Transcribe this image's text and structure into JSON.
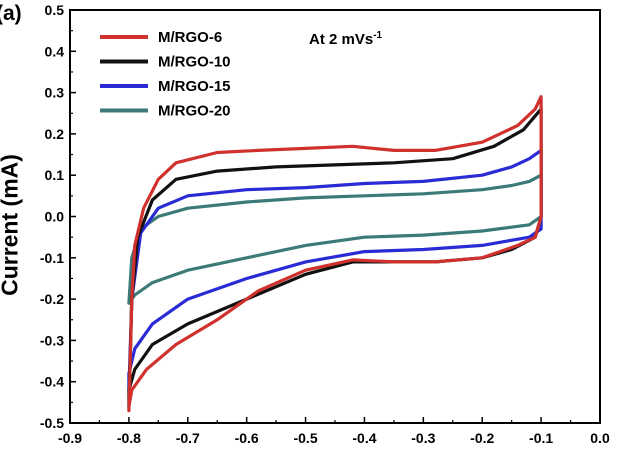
{
  "panel_label": "(a)",
  "chart_data": {
    "type": "line",
    "ylabel": "Current (mA)",
    "xlabel": "",
    "xlim": [
      -0.9,
      0.0
    ],
    "ylim": [
      -0.5,
      0.5
    ],
    "xticks": [
      "-0.9",
      "-0.8",
      "-0.7",
      "-0.6",
      "-0.5",
      "-0.4",
      "-0.3",
      "-0.2",
      "-0.1",
      "0.0"
    ],
    "yticks": [
      "0.5",
      "0.4",
      "0.3",
      "0.2",
      "0.1",
      "0.0",
      "-0.1",
      "-0.2",
      "-0.3",
      "-0.4",
      "-0.5"
    ],
    "annotation": {
      "text": "At 2 mVs",
      "superscript": "-1"
    },
    "legend_position": "top-left",
    "series": [
      {
        "name": "M/RGO-6",
        "color": "#d0312d",
        "x": [
          -0.8,
          -0.795,
          -0.79,
          -0.775,
          -0.75,
          -0.72,
          -0.65,
          -0.58,
          -0.5,
          -0.42,
          -0.35,
          -0.28,
          -0.2,
          -0.14,
          -0.11,
          -0.1,
          -0.1,
          -0.1,
          -0.11,
          -0.14,
          -0.2,
          -0.28,
          -0.35,
          -0.42,
          -0.5,
          -0.58,
          -0.65,
          -0.72,
          -0.77,
          -0.795,
          -0.8,
          -0.8
        ],
        "y": [
          -0.47,
          -0.2,
          -0.07,
          0.02,
          0.09,
          0.13,
          0.155,
          0.16,
          0.165,
          0.17,
          0.16,
          0.16,
          0.18,
          0.22,
          0.26,
          0.29,
          0.1,
          0.0,
          -0.05,
          -0.07,
          -0.1,
          -0.11,
          -0.11,
          -0.105,
          -0.13,
          -0.18,
          -0.25,
          -0.31,
          -0.37,
          -0.42,
          -0.46,
          -0.47
        ]
      },
      {
        "name": "M/RGO-10",
        "color": "#111111",
        "x": [
          -0.8,
          -0.795,
          -0.785,
          -0.76,
          -0.72,
          -0.65,
          -0.55,
          -0.45,
          -0.35,
          -0.25,
          -0.18,
          -0.13,
          -0.1,
          -0.1,
          -0.1,
          -0.11,
          -0.15,
          -0.2,
          -0.28,
          -0.35,
          -0.42,
          -0.5,
          -0.6,
          -0.7,
          -0.76,
          -0.79,
          -0.8,
          -0.8
        ],
        "y": [
          -0.46,
          -0.2,
          -0.05,
          0.04,
          0.09,
          0.11,
          0.12,
          0.125,
          0.13,
          0.14,
          0.17,
          0.21,
          0.26,
          0.1,
          0.0,
          -0.05,
          -0.08,
          -0.1,
          -0.11,
          -0.11,
          -0.11,
          -0.14,
          -0.2,
          -0.26,
          -0.31,
          -0.37,
          -0.42,
          -0.46
        ]
      },
      {
        "name": "M/RGO-15",
        "color": "#2b2bd6",
        "x": [
          -0.8,
          -0.795,
          -0.78,
          -0.75,
          -0.7,
          -0.6,
          -0.5,
          -0.4,
          -0.3,
          -0.2,
          -0.15,
          -0.12,
          -0.1,
          -0.1,
          -0.1,
          -0.12,
          -0.2,
          -0.3,
          -0.4,
          -0.5,
          -0.6,
          -0.7,
          -0.76,
          -0.79,
          -0.8,
          -0.8
        ],
        "y": [
          -0.42,
          -0.2,
          -0.04,
          0.02,
          0.05,
          0.065,
          0.07,
          0.08,
          0.085,
          0.1,
          0.12,
          0.14,
          0.16,
          0.05,
          -0.03,
          -0.05,
          -0.07,
          -0.08,
          -0.085,
          -0.11,
          -0.15,
          -0.2,
          -0.26,
          -0.32,
          -0.38,
          -0.42
        ]
      },
      {
        "name": "M/RGO-20",
        "color": "#3c7a78",
        "x": [
          -0.8,
          -0.795,
          -0.78,
          -0.75,
          -0.7,
          -0.6,
          -0.5,
          -0.4,
          -0.3,
          -0.2,
          -0.15,
          -0.12,
          -0.1,
          -0.1,
          -0.1,
          -0.12,
          -0.2,
          -0.3,
          -0.4,
          -0.5,
          -0.6,
          -0.7,
          -0.76,
          -0.79,
          -0.8
        ],
        "y": [
          -0.21,
          -0.1,
          -0.03,
          0.0,
          0.02,
          0.035,
          0.045,
          0.05,
          0.055,
          0.065,
          0.075,
          0.085,
          0.1,
          0.05,
          0.0,
          -0.02,
          -0.035,
          -0.045,
          -0.05,
          -0.07,
          -0.1,
          -0.13,
          -0.16,
          -0.19,
          -0.21
        ]
      }
    ]
  }
}
